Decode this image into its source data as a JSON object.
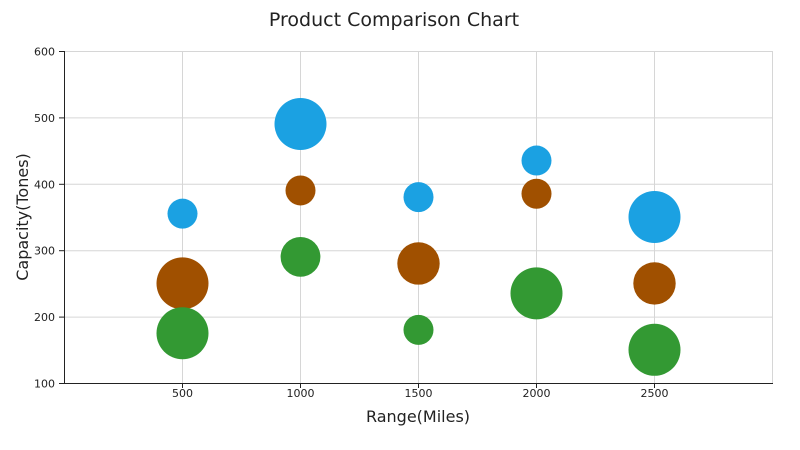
{
  "chart_data": {
    "type": "scatter",
    "variant": "bubble",
    "title": "Product Comparison Chart",
    "xlabel": "Range(Miles)",
    "ylabel": "Capacity(Tones)",
    "xlim": [
      0,
      3000
    ],
    "ylim": [
      100,
      600
    ],
    "x_ticks": [
      500,
      1000,
      1500,
      2000,
      2500
    ],
    "y_ticks": [
      100,
      200,
      300,
      400,
      500,
      600
    ],
    "grid": true,
    "legend": "none",
    "series": [
      {
        "color": "#1ba1e2",
        "points": [
          {
            "x": 500,
            "y": 355,
            "size": 2
          },
          {
            "x": 1000,
            "y": 490,
            "size": 6
          },
          {
            "x": 1500,
            "y": 380,
            "size": 2
          },
          {
            "x": 2000,
            "y": 435,
            "size": 2
          },
          {
            "x": 2500,
            "y": 350,
            "size": 6
          }
        ]
      },
      {
        "color": "#a05000",
        "points": [
          {
            "x": 500,
            "y": 250,
            "size": 6
          },
          {
            "x": 1000,
            "y": 390,
            "size": 2
          },
          {
            "x": 1500,
            "y": 280,
            "size": 4
          },
          {
            "x": 2000,
            "y": 385,
            "size": 2
          },
          {
            "x": 2500,
            "y": 250,
            "size": 4
          }
        ]
      },
      {
        "color": "#339933",
        "points": [
          {
            "x": 500,
            "y": 175,
            "size": 6
          },
          {
            "x": 1000,
            "y": 290,
            "size": 3.5
          },
          {
            "x": 1500,
            "y": 180,
            "size": 2
          },
          {
            "x": 2000,
            "y": 235,
            "size": 6
          },
          {
            "x": 2500,
            "y": 150,
            "size": 6
          }
        ]
      }
    ]
  }
}
